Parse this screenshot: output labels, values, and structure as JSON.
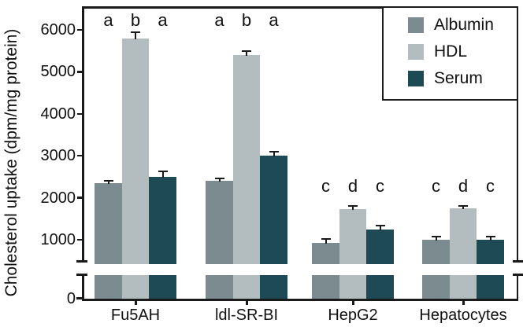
{
  "chart_data": {
    "type": "bar",
    "title": "",
    "ylabel": "Cholesterol uptake (dpm/mg protein)",
    "xlabel": "",
    "categories": [
      "Fu5AH",
      "ldl-SR-BI",
      "HepG2",
      "Hepatocytes"
    ],
    "series": [
      {
        "name": "Albumin",
        "color": "#7c8b90",
        "values": [
          2350,
          2400,
          920,
          1000
        ],
        "errors": [
          50,
          70,
          90,
          80
        ],
        "letters": [
          "a",
          "a",
          "c",
          "c"
        ]
      },
      {
        "name": "HDL",
        "color": "#b3bdc0",
        "values": [
          5800,
          5400,
          1730,
          1750
        ],
        "errors": [
          150,
          90,
          80,
          60
        ],
        "letters": [
          "b",
          "b",
          "d",
          "d"
        ]
      },
      {
        "name": "Serum",
        "color": "#1d4a55",
        "values": [
          2500,
          3000,
          1250,
          1000
        ],
        "errors": [
          120,
          100,
          80,
          70
        ],
        "letters": [
          "a",
          "a",
          "c",
          "c"
        ]
      }
    ],
    "yticks": [
      0,
      1000,
      2000,
      3000,
      4000,
      5000,
      6000
    ],
    "ylim": [
      0,
      6600
    ],
    "axis_break": {
      "present": true,
      "hidden_range_approx": [
        500,
        600
      ]
    },
    "grid": false,
    "legend_position": "top-right",
    "error_bars": "upper only, cap style",
    "annotation_note": "significance letters shown above each bar"
  },
  "colors": {
    "axis": "#1a1a1a",
    "text": "#111111",
    "background": "#ffffff"
  }
}
